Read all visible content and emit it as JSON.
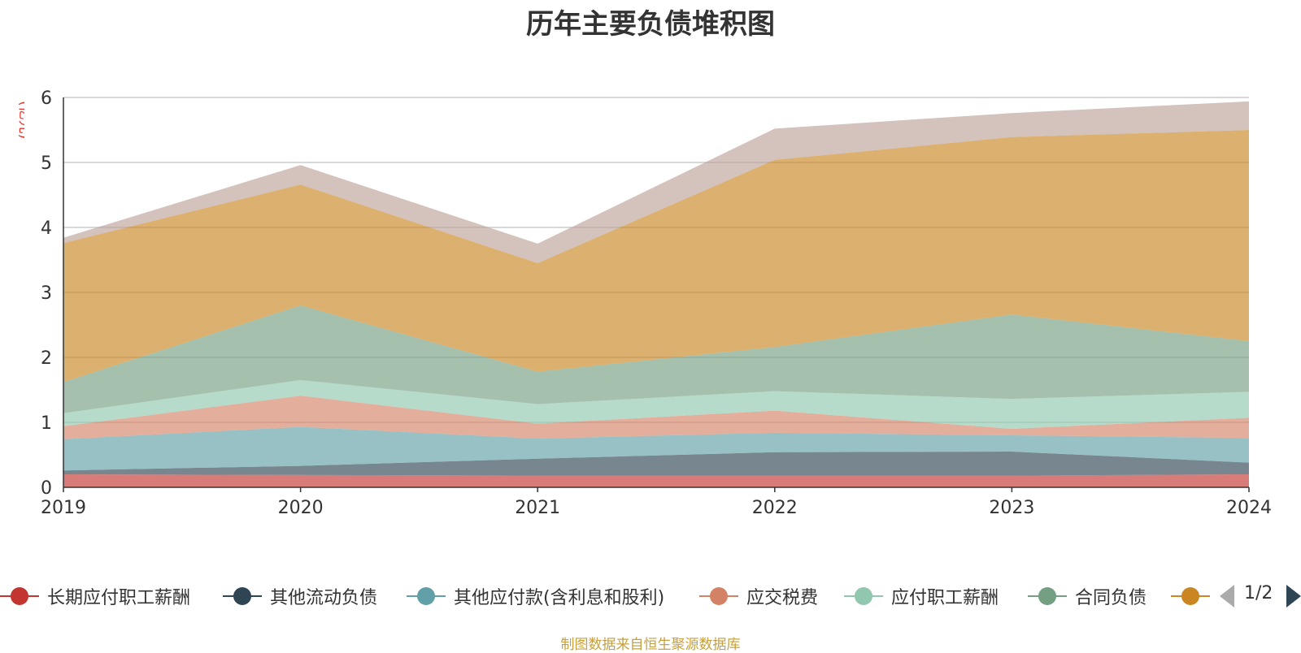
{
  "chart_data": {
    "type": "area",
    "stacked": true,
    "title": "历年主要负债堆积图",
    "unit": "(亿元)",
    "x": [
      "2019",
      "2020",
      "2021",
      "2022",
      "2023",
      "2024"
    ],
    "ylim": [
      0,
      6
    ],
    "yticks": [
      0,
      1,
      2,
      3,
      4,
      5,
      6
    ],
    "grid": true,
    "series": [
      {
        "name": "长期应付职工薪酬",
        "color": "#c23531",
        "values": [
          0.2,
          0.19,
          0.18,
          0.18,
          0.18,
          0.2
        ]
      },
      {
        "name": "其他流动负债",
        "color": "#2f4554",
        "values": [
          0.06,
          0.14,
          0.26,
          0.36,
          0.37,
          0.18
        ]
      },
      {
        "name": "其他应付款(含利息和股利)",
        "color": "#61a0a8",
        "values": [
          0.48,
          0.6,
          0.31,
          0.3,
          0.25,
          0.38
        ]
      },
      {
        "name": "应交税费",
        "color": "#d48265",
        "values": [
          0.2,
          0.48,
          0.23,
          0.34,
          0.1,
          0.31
        ]
      },
      {
        "name": "应付职工薪酬",
        "color": "#91c7ae",
        "values": [
          0.2,
          0.24,
          0.3,
          0.3,
          0.46,
          0.4
        ]
      },
      {
        "name": "合同负债",
        "color": "#749f83",
        "values": [
          0.48,
          1.15,
          0.5,
          0.68,
          1.3,
          0.78
        ]
      },
      {
        "name": "",
        "color": "#ca8622",
        "values": [
          2.14,
          1.86,
          1.67,
          2.88,
          2.73,
          3.25
        ]
      },
      {
        "name": "",
        "color": "#bda29a",
        "values": [
          0.08,
          0.3,
          0.3,
          0.48,
          0.37,
          0.44
        ]
      }
    ],
    "legend_position": "bottom"
  },
  "legend": {
    "page_info": "1/2"
  },
  "source_note": "制图数据来自恒生聚源数据库"
}
